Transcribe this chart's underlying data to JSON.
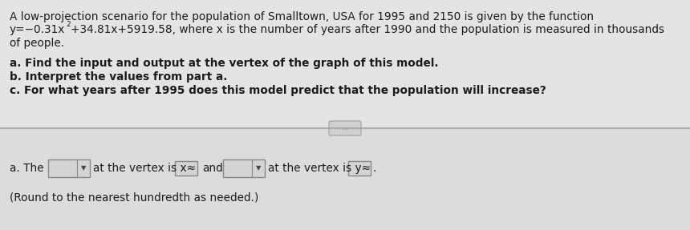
{
  "bg_color_top": "#e0e0e0",
  "bg_color_bottom": "#d8d8d8",
  "line1": "A low-projection scenario for the population of Smalltown, USA for 1995 and 2150 is given by the function",
  "line2a": "y = −0.31x",
  "line2b": "2",
  "line2c": "+34.81x+5919.58, where x is the number of years after 1990 and the population is measured in thousands",
  "line3": "of people.",
  "qa": "a. Find the input and output at the vertex of the graph of this model.",
  "qb": "b. Interpret the values from part a.",
  "qc": "c. For what years after 1995 does this model predict that the population will increase?",
  "ans_pre": "a. The",
  "ans_mid1": "at the vertex is x≈",
  "ans_and": "and",
  "ans_mid2": "at the vertex is y≈",
  "ans_dot": ".",
  "ans_note": "(Round to the nearest hundredth as needed.)",
  "separator_dots": "...",
  "font_size": 9.8,
  "font_size_small": 7.0,
  "text_color": "#1c1c1c",
  "box_edge_color": "#888888",
  "box_fill_color": "#d4d4d4",
  "line_color": "#aaaaaa",
  "sep_button_bg": "#d0d0d0",
  "sep_button_edge": "#aaaaaa"
}
